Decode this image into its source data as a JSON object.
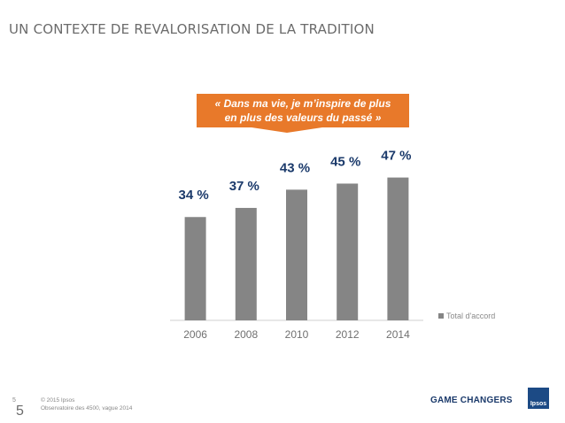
{
  "slide": {
    "title": "UN CONTEXTE DE REVALORISATION DE LA TRADITION",
    "callout_line1": "«  Dans ma vie, je m’inspire de plus",
    "callout_line2": "en plus des valeurs du passé »",
    "page_number_small": "5",
    "page_number_large": "5",
    "copyright": "© 2015 Ipsos",
    "source": "Observatoire des 4500, vague 2014",
    "tagline": "GAME CHANGERS",
    "logo_text": "Ipsos"
  },
  "colors": {
    "bar": "#858585",
    "data_label": "#1b3a6b",
    "callout": "#e8792a",
    "brand": "#1c4a85"
  },
  "chart_data": {
    "type": "bar",
    "categories": [
      "2006",
      "2008",
      "2010",
      "2012",
      "2014"
    ],
    "series": [
      {
        "name": "Total d'accord",
        "values": [
          34,
          37,
          43,
          45,
          47
        ]
      }
    ],
    "data_labels": [
      "34 %",
      "37 %",
      "43 %",
      "45 %",
      "47 %"
    ],
    "title": "",
    "xlabel": "",
    "ylabel": "",
    "ylim": [
      0,
      53
    ],
    "grid": false,
    "legend_position": "right"
  }
}
